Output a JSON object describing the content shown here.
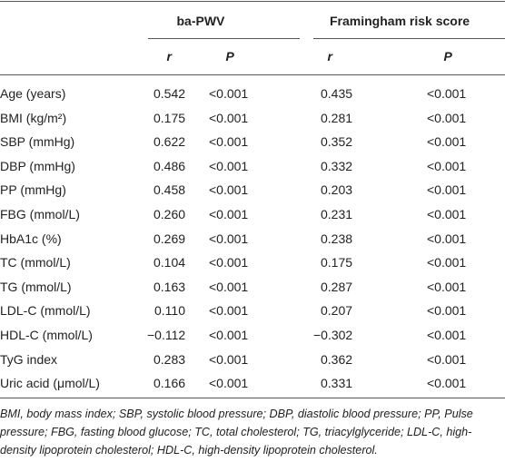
{
  "header": {
    "groups": [
      "ba-PWV",
      "Framingham risk score"
    ],
    "subheaders": [
      "r",
      "P",
      "r",
      "P"
    ]
  },
  "table": {
    "rows": [
      [
        "Age (years)",
        "0.542",
        "<0.001",
        "0.435",
        "<0.001"
      ],
      [
        "BMI (kg/m²)",
        "0.175",
        "<0.001",
        "0.281",
        "<0.001"
      ],
      [
        "SBP (mmHg)",
        "0.622",
        "<0.001",
        "0.352",
        "<0.001"
      ],
      [
        "DBP (mmHg)",
        "0.486",
        "<0.001",
        "0.332",
        "<0.001"
      ],
      [
        "PP (mmHg)",
        "0.458",
        "<0.001",
        "0.203",
        "<0.001"
      ],
      [
        "FBG (mmol/L)",
        "0.260",
        "<0.001",
        "0.231",
        "<0.001"
      ],
      [
        "HbA1c (%)",
        "0.269",
        "<0.001",
        "0.238",
        "<0.001"
      ],
      [
        "TC (mmol/L)",
        "0.104",
        "<0.001",
        "0.175",
        "<0.001"
      ],
      [
        "TG (mmol/L)",
        "0.163",
        "<0.001",
        "0.287",
        "<0.001"
      ],
      [
        "LDL-C (mmol/L)",
        "0.110",
        "<0.001",
        "0.207",
        "<0.001"
      ],
      [
        "HDL-C (mmol/L)",
        "−0.112",
        "<0.001",
        "−0.302",
        "<0.001"
      ],
      [
        "TyG index",
        "0.283",
        "<0.001",
        "0.362",
        "<0.001"
      ],
      [
        "Uric acid (μmol/L)",
        "0.166",
        "<0.001",
        "0.331",
        "<0.001"
      ]
    ]
  },
  "footnote": "BMI, body mass index; SBP, systolic blood pressure; DBP, diastolic blood pressure; PP, Pulse pressure; FBG, fasting blood glucose; TC, total cholesterol; TG, triacylglyceride; LDL-C, high-density lipoprotein cholesterol; HDL-C, high-density lipoprotein cholesterol."
}
